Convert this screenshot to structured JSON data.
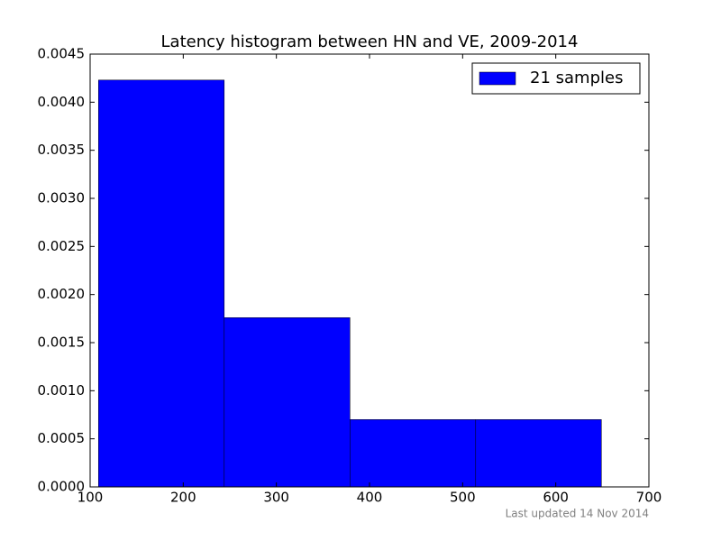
{
  "chart_data": {
    "type": "histogram",
    "title": "Latency histogram between HN and VE, 2009-2014",
    "footnote": "Last updated 14 Nov 2014",
    "bins": [
      109,
      244,
      379,
      514,
      649
    ],
    "series": [
      {
        "name": "21 samples",
        "color": "#0000ff",
        "values": [
          0.00423,
          0.00176,
          0.0007,
          0.0007
        ]
      }
    ],
    "xlim": [
      100,
      700
    ],
    "xticks": [
      100,
      200,
      300,
      400,
      500,
      600,
      700
    ],
    "ylim": [
      0,
      0.0045
    ],
    "yticks": [
      {
        "value": 0,
        "label": "0.0000"
      },
      {
        "value": 0.0005,
        "label": "0.0005"
      },
      {
        "value": 0.001,
        "label": "0.0010"
      },
      {
        "value": 0.0015,
        "label": "0.0015"
      },
      {
        "value": 0.002,
        "label": "0.0020"
      },
      {
        "value": 0.0025,
        "label": "0.0025"
      },
      {
        "value": 0.003,
        "label": "0.0030"
      },
      {
        "value": 0.0035,
        "label": "0.0035"
      },
      {
        "value": 0.004,
        "label": "0.0040"
      },
      {
        "value": 0.0045,
        "label": "0.0045"
      }
    ],
    "legend": "upper right"
  }
}
